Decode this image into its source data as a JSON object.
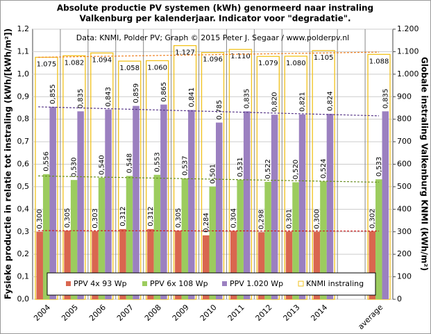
{
  "chart_data": {
    "type": "bar",
    "title": [
      "Absolute productie PV systemen (kWh) genormeerd naar instraling",
      "Valkenburg per kalenderjaar. Indicator voor \"degradatie\"."
    ],
    "subtitle": "Data: KNMI, Polder PV; Graph © 2015 Peter J. Segaar / www.polderpv.nl",
    "ylabel": "Fysieke productie in relatie tot instraling (kWh/[kWh/m²])",
    "y2label": "Globale instraling Valkenburg KNMI (kWh/m²)",
    "categories": [
      "2004",
      "2005",
      "2006",
      "2007",
      "2008",
      "2009",
      "2010",
      "2011",
      "2012",
      "2013",
      "2014",
      null,
      "average"
    ],
    "series": [
      {
        "name": "PPV 4x 93 Wp",
        "color": "#d9664f",
        "trend_color": "#cc2020",
        "trend": [
          0.305,
          0.303
        ],
        "values": [
          0.3,
          0.305,
          0.303,
          0.312,
          0.312,
          0.305,
          0.284,
          0.304,
          0.298,
          0.301,
          0.3,
          null,
          0.302
        ],
        "value_labels": [
          "0,300",
          "0,305",
          "0,303",
          "0,312",
          "0,312",
          "0,305",
          "0,284",
          "0,304",
          "0,298",
          "0,301",
          "0,300",
          null,
          "0,302"
        ]
      },
      {
        "name": "PPV 6x 108 Wp",
        "color": "#9ccc5e",
        "trend_color": "#6b8e23",
        "trend": [
          0.548,
          0.52
        ],
        "values": [
          0.556,
          0.53,
          0.54,
          0.548,
          0.553,
          0.537,
          0.501,
          0.531,
          0.522,
          0.52,
          0.524,
          null,
          0.533
        ],
        "value_labels": [
          "0,556",
          "0,530",
          "0,540",
          "0,548",
          "0,553",
          "0,537",
          "0,501",
          "0,531",
          "0,522",
          "0,520",
          "0,524",
          null,
          "0,533"
        ]
      },
      {
        "name": "PPV 1.020 Wp",
        "color": "#9b80c0",
        "trend_color": "#5a3a8a",
        "trend": [
          0.855,
          0.815
        ],
        "values": [
          0.855,
          0.835,
          0.843,
          0.859,
          0.865,
          0.841,
          0.785,
          0.835,
          0.82,
          0.821,
          0.824,
          null,
          0.835
        ],
        "value_labels": [
          "0,855",
          "0,835",
          "0,843",
          "0,859",
          "0,865",
          "0,841",
          "0,785",
          "0,835",
          "0,820",
          "0,821",
          "0,824",
          null,
          "0,835"
        ]
      },
      {
        "name": "KNMI instraling",
        "color": "#f2c21b",
        "trend_color": "#f08020",
        "trend": [
          1075,
          1098
        ],
        "axis": "y2",
        "values": [
          1075,
          1082,
          1094,
          1058,
          1060,
          1127,
          1096,
          1110,
          1079,
          1080,
          1105,
          null,
          1088
        ],
        "value_labels": [
          "1.075",
          "1.082",
          "1.094",
          "1.058",
          "1.060",
          "1.127",
          "1.096",
          "1.110",
          "1.079",
          "1.080",
          "1.105",
          null,
          "1.088"
        ]
      }
    ],
    "ylim": [
      0,
      1.2
    ],
    "yticks": [
      {
        "value": 0,
        "label": "0,0"
      },
      {
        "value": 0.1,
        "label": "0,1"
      },
      {
        "value": 0.2,
        "label": "0,2"
      },
      {
        "value": 0.3,
        "label": "0,3"
      },
      {
        "value": 0.4,
        "label": "0,4"
      },
      {
        "value": 0.5,
        "label": "0,5"
      },
      {
        "value": 0.6,
        "label": "0,6"
      },
      {
        "value": 0.7,
        "label": "0,7"
      },
      {
        "value": 0.8,
        "label": "0,8"
      },
      {
        "value": 0.9,
        "label": "0,9"
      },
      {
        "value": 1.0,
        "label": "1,0"
      },
      {
        "value": 1.1,
        "label": "1,1"
      },
      {
        "value": 1.2,
        "label": "1,2"
      }
    ],
    "y2lim": [
      0,
      1200
    ],
    "y2ticks": [
      0,
      100,
      200,
      300,
      400,
      500,
      600,
      700,
      800,
      900,
      {
        "value": 1000,
        "label": "1.000"
      },
      {
        "value": 1100,
        "label": "1.100"
      },
      {
        "value": 1200,
        "label": "1.200"
      }
    ],
    "grid": true,
    "legend": "bottom"
  }
}
